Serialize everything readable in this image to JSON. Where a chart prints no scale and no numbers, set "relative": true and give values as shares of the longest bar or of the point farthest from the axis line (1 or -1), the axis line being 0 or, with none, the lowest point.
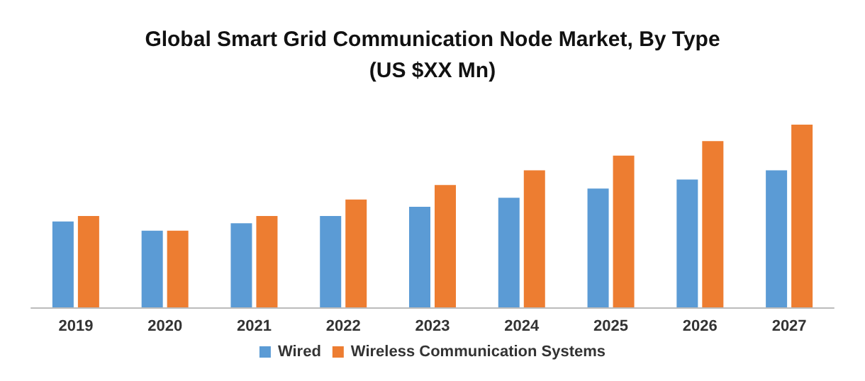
{
  "chart_data": {
    "type": "bar",
    "title": "Global Smart Grid Communication Node Market, By Type\n(US $XX Mn)",
    "relative": true,
    "categories": [
      "2019",
      "2020",
      "2021",
      "2022",
      "2023",
      "2024",
      "2025",
      "2026",
      "2027"
    ],
    "series": [
      {
        "name": "Wired",
        "color": "#5b9bd5",
        "values": [
          0.47,
          0.42,
          0.46,
          0.5,
          0.55,
          0.6,
          0.65,
          0.7,
          0.75
        ]
      },
      {
        "name": "Wireless Communication Systems",
        "color": "#ed7d31",
        "values": [
          0.5,
          0.42,
          0.5,
          0.59,
          0.67,
          0.75,
          0.83,
          0.91,
          1
        ]
      }
    ],
    "legend": "bottom"
  }
}
